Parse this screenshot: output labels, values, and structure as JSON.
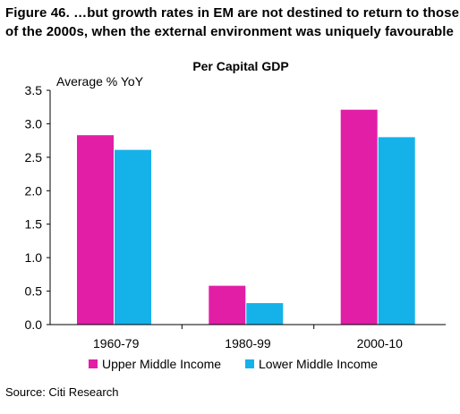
{
  "figure": {
    "title_line1": "Figure 46. …but growth rates in EM are not destined to return to those",
    "title_line2": "of the 2000s, when the external environment was uniquely favourable",
    "source": "Source: Citi Research"
  },
  "chart_data": {
    "type": "bar",
    "title": "Per Capital GDP",
    "ylabel": "Average % YoY",
    "xlabel": "",
    "categories": [
      "1960-79",
      "1980-99",
      "2000-10"
    ],
    "series": [
      {
        "name": "Upper Middle Income",
        "values": [
          2.83,
          0.58,
          3.21
        ],
        "color": "#e21ea7"
      },
      {
        "name": "Lower Middle Income",
        "values": [
          2.61,
          0.32,
          2.8
        ],
        "color": "#15b2ea"
      }
    ],
    "ylim": [
      0,
      3.5
    ],
    "yticks": [
      "0.0",
      "0.5",
      "1.0",
      "1.5",
      "2.0",
      "2.5",
      "3.0",
      "3.5"
    ],
    "grid": false,
    "legend_position": "bottom"
  }
}
